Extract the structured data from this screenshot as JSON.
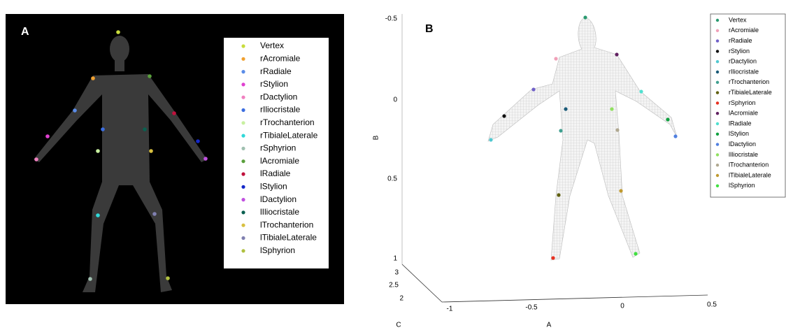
{
  "panel_a": {
    "label": "A",
    "legend": [
      {
        "name": "Vertex",
        "color": "#c8dc3c"
      },
      {
        "name": "rAcromiale",
        "color": "#f0a030"
      },
      {
        "name": "rRadiale",
        "color": "#5a8ce8"
      },
      {
        "name": "rStylion",
        "color": "#e040d0"
      },
      {
        "name": "rDactylion",
        "color": "#f080c0"
      },
      {
        "name": "rIliocristale",
        "color": "#3c6ee0"
      },
      {
        "name": "rTrochanterion",
        "color": "#c8f0a0"
      },
      {
        "name": "rTibialeLaterale",
        "color": "#30d8d8"
      },
      {
        "name": "rSphyrion",
        "color": "#a0c0b0"
      },
      {
        "name": "lAcromiale",
        "color": "#5aa03c"
      },
      {
        "name": "lRadiale",
        "color": "#c0103c"
      },
      {
        "name": "lStylion",
        "color": "#1428c8"
      },
      {
        "name": "lDactylion",
        "color": "#c050e0"
      },
      {
        "name": "lIliocristale",
        "color": "#0a6050"
      },
      {
        "name": "lTrochanterion",
        "color": "#d8c040"
      },
      {
        "name": "lTibialeLaterale",
        "color": "#8080b0"
      },
      {
        "name": "lSphyrion",
        "color": "#b0c040"
      }
    ]
  },
  "panel_b": {
    "label": "B",
    "legend": [
      {
        "name": "Vertex",
        "color": "#2a9a70"
      },
      {
        "name": "rAcromiale",
        "color": "#f0a0b8"
      },
      {
        "name": "rRadiale",
        "color": "#7060c8"
      },
      {
        "name": "rStylion",
        "color": "#101010"
      },
      {
        "name": "rDactylion",
        "color": "#50c8d0"
      },
      {
        "name": "rIliocristale",
        "color": "#1a5a78"
      },
      {
        "name": "rTrochanterion",
        "color": "#40a090"
      },
      {
        "name": "rTibialeLaterale",
        "color": "#606010"
      },
      {
        "name": "rSphyrion",
        "color": "#e83020"
      },
      {
        "name": "lAcromiale",
        "color": "#602060"
      },
      {
        "name": "lRadiale",
        "color": "#50e0d0"
      },
      {
        "name": "lStylion",
        "color": "#10a040"
      },
      {
        "name": "lDactylion",
        "color": "#5080e0"
      },
      {
        "name": "lIliocristale",
        "color": "#90e060"
      },
      {
        "name": "lTrochanterion",
        "color": "#b0a890"
      },
      {
        "name": "lTibialeLaterale",
        "color": "#c09a30"
      },
      {
        "name": "lSphyrion",
        "color": "#40e040"
      }
    ],
    "axes": {
      "b_label": "B",
      "a_label": "A",
      "c_label": "C",
      "b_ticks": [
        "-0.5",
        "0",
        "0.5",
        "1"
      ],
      "a_ticks": [
        "-1",
        "-0.5",
        "0",
        "0.5"
      ],
      "c_ticks": [
        "3",
        "2.5",
        "2"
      ]
    }
  }
}
